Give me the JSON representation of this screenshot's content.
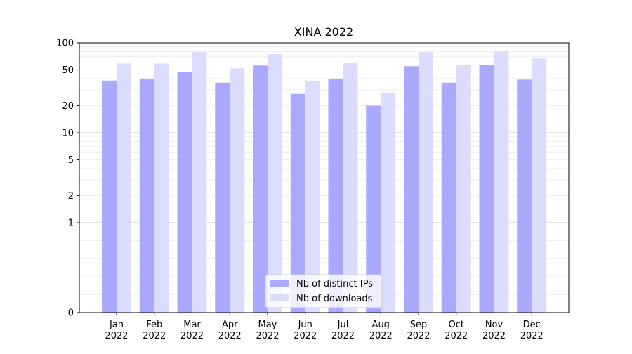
{
  "chart_data": {
    "type": "bar",
    "title": "XINA 2022",
    "xlabel": "",
    "ylabel": "",
    "yscale": "symlog",
    "ylim": [
      0,
      100
    ],
    "yticks": [
      0,
      1,
      2,
      5,
      10,
      20,
      50,
      100
    ],
    "ytick_labels": [
      "0",
      "1",
      "2",
      "5",
      "10",
      "20",
      "50",
      "100"
    ],
    "categories": [
      "Jan\n2022",
      "Feb\n2022",
      "Mar\n2022",
      "Apr\n2022",
      "May\n2022",
      "Jun\n2022",
      "Jul\n2022",
      "Aug\n2022",
      "Sep\n2022",
      "Oct\n2022",
      "Nov\n2022",
      "Dec\n2022"
    ],
    "series": [
      {
        "name": "Nb of distinct IPs",
        "color": "#a9a9ff",
        "values": [
          38,
          40,
          47,
          36,
          56,
          27,
          40,
          20,
          55,
          36,
          57,
          39
        ]
      },
      {
        "name": "Nb of downloads",
        "color": "#dcdcff",
        "values": [
          59,
          59,
          79,
          52,
          75,
          38,
          60,
          28,
          79,
          57,
          80,
          67
        ]
      }
    ],
    "grid": true,
    "legend_position": "lower center"
  }
}
